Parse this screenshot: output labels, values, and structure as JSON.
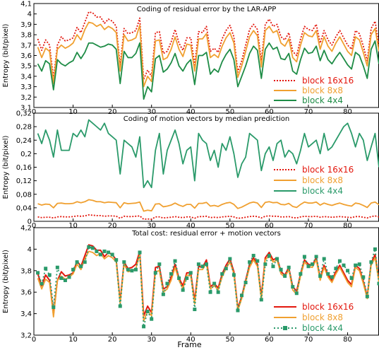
{
  "xlabel": "Frame",
  "chart_data": [
    {
      "type": "line",
      "title": "Coding of residual error by the LAR-APP",
      "ylabel": "Entropy (bit/pixel)",
      "xlim": [
        0,
        88
      ],
      "ylim": [
        3.1,
        4.1
      ],
      "yticks": [
        "3,1",
        "3,2",
        "3,3",
        "3,4",
        "3,5",
        "3,6",
        "3,7",
        "3,8",
        "3,9",
        "4",
        "4,1"
      ],
      "xticks": [
        "0",
        "10",
        "20",
        "30",
        "40",
        "50",
        "60",
        "70",
        "80"
      ],
      "legend_position": "bottom-right",
      "grid": false,
      "series": [
        {
          "name": "block 16x16",
          "color": "#e3170d",
          "dash": "2,2",
          "markers": false,
          "values": [
            3.76,
            3.65,
            3.75,
            3.7,
            3.38,
            3.7,
            3.78,
            3.74,
            3.75,
            3.77,
            3.87,
            3.82,
            3.92,
            4.02,
            4.01,
            3.97,
            3.97,
            3.91,
            3.95,
            3.93,
            3.88,
            3.5,
            3.86,
            3.81,
            3.82,
            3.84,
            3.96,
            3.37,
            3.46,
            3.4,
            3.82,
            3.83,
            3.62,
            3.64,
            3.73,
            3.85,
            3.72,
            3.65,
            3.77,
            3.77,
            3.51,
            3.83,
            3.82,
            3.88,
            3.64,
            3.67,
            3.63,
            3.76,
            3.84,
            3.89,
            3.78,
            3.44,
            3.55,
            3.7,
            3.85,
            3.9,
            3.85,
            3.55,
            3.9,
            3.95,
            3.88,
            3.9,
            3.78,
            3.75,
            3.82,
            3.64,
            3.6,
            3.76,
            3.88,
            3.85,
            3.84,
            3.9,
            3.72,
            3.84,
            3.75,
            3.7,
            3.78,
            3.84,
            3.77,
            3.7,
            3.66,
            3.84,
            3.81,
            3.69,
            3.55,
            3.86,
            3.93,
            3.7
          ]
        },
        {
          "name": "block 8x8",
          "color": "#f0a030",
          "dash": "",
          "markers": false,
          "values": [
            3.68,
            3.58,
            3.67,
            3.64,
            3.33,
            3.66,
            3.7,
            3.67,
            3.69,
            3.72,
            3.8,
            3.75,
            3.85,
            3.92,
            3.91,
            3.88,
            3.9,
            3.85,
            3.88,
            3.86,
            3.82,
            3.45,
            3.8,
            3.74,
            3.75,
            3.77,
            3.89,
            3.3,
            3.4,
            3.35,
            3.74,
            3.75,
            3.56,
            3.58,
            3.66,
            3.78,
            3.66,
            3.59,
            3.71,
            3.7,
            3.45,
            3.76,
            3.76,
            3.81,
            3.58,
            3.61,
            3.58,
            3.69,
            3.77,
            3.82,
            3.72,
            3.39,
            3.5,
            3.64,
            3.78,
            3.84,
            3.79,
            3.49,
            3.84,
            3.88,
            3.82,
            3.84,
            3.72,
            3.69,
            3.76,
            3.58,
            3.54,
            3.7,
            3.82,
            3.79,
            3.78,
            3.84,
            3.66,
            3.78,
            3.69,
            3.64,
            3.72,
            3.78,
            3.71,
            3.64,
            3.6,
            3.78,
            3.75,
            3.63,
            3.5,
            3.8,
            3.86,
            3.64
          ]
        },
        {
          "name": "block 4x4",
          "color": "#1e8c46",
          "dash": "",
          "markers": false,
          "values": [
            3.52,
            3.45,
            3.55,
            3.52,
            3.27,
            3.56,
            3.52,
            3.5,
            3.53,
            3.55,
            3.63,
            3.57,
            3.63,
            3.72,
            3.72,
            3.7,
            3.68,
            3.69,
            3.71,
            3.7,
            3.66,
            3.33,
            3.64,
            3.58,
            3.58,
            3.62,
            3.72,
            3.18,
            3.3,
            3.25,
            3.57,
            3.6,
            3.44,
            3.47,
            3.53,
            3.62,
            3.5,
            3.45,
            3.52,
            3.56,
            3.32,
            3.6,
            3.6,
            3.63,
            3.42,
            3.47,
            3.44,
            3.54,
            3.61,
            3.66,
            3.56,
            3.3,
            3.4,
            3.5,
            3.62,
            3.69,
            3.65,
            3.38,
            3.66,
            3.72,
            3.66,
            3.68,
            3.57,
            3.56,
            3.62,
            3.45,
            3.42,
            3.56,
            3.67,
            3.62,
            3.63,
            3.69,
            3.55,
            3.65,
            3.56,
            3.52,
            3.58,
            3.63,
            3.57,
            3.51,
            3.47,
            3.63,
            3.6,
            3.5,
            3.38,
            3.66,
            3.74,
            3.52
          ]
        }
      ]
    },
    {
      "type": "line",
      "title": "Coding of motion vectors by median prediction",
      "ylabel": "Entropy (bit/pixel)",
      "xlim": [
        0,
        88
      ],
      "ylim": [
        0,
        0.32
      ],
      "yticks": [
        "0",
        "0,04",
        "0,08",
        "0,12",
        "0,16",
        "0,2",
        "0,24",
        "0,28",
        "0,32"
      ],
      "xticks": [
        "0",
        "10",
        "20",
        "30",
        "40",
        "50",
        "60",
        "70",
        "80"
      ],
      "legend_position": "right",
      "grid": false,
      "series": [
        {
          "name": "block 16x16",
          "color": "#e3170d",
          "dash": "2,2",
          "markers": false,
          "values": [
            0.013,
            0.011,
            0.012,
            0.012,
            0.01,
            0.013,
            0.014,
            0.013,
            0.013,
            0.014,
            0.016,
            0.015,
            0.016,
            0.019,
            0.018,
            0.017,
            0.017,
            0.015,
            0.016,
            0.016,
            0.015,
            0.009,
            0.015,
            0.014,
            0.014,
            0.015,
            0.016,
            0.006,
            0.007,
            0.006,
            0.013,
            0.013,
            0.01,
            0.011,
            0.012,
            0.014,
            0.012,
            0.011,
            0.013,
            0.013,
            0.009,
            0.014,
            0.014,
            0.015,
            0.011,
            0.012,
            0.011,
            0.013,
            0.014,
            0.015,
            0.013,
            0.009,
            0.01,
            0.012,
            0.014,
            0.015,
            0.014,
            0.01,
            0.015,
            0.016,
            0.015,
            0.015,
            0.013,
            0.013,
            0.014,
            0.011,
            0.01,
            0.013,
            0.015,
            0.014,
            0.014,
            0.015,
            0.012,
            0.014,
            0.013,
            0.012,
            0.013,
            0.014,
            0.013,
            0.012,
            0.011,
            0.014,
            0.014,
            0.012,
            0.01,
            0.014,
            0.016,
            0.013
          ]
        },
        {
          "name": "block 8x8",
          "color": "#f0a030",
          "dash": "",
          "markers": false,
          "values": [
            0.052,
            0.048,
            0.051,
            0.05,
            0.04,
            0.053,
            0.054,
            0.052,
            0.052,
            0.053,
            0.058,
            0.055,
            0.058,
            0.064,
            0.062,
            0.058,
            0.058,
            0.055,
            0.057,
            0.056,
            0.055,
            0.04,
            0.055,
            0.052,
            0.053,
            0.054,
            0.057,
            0.03,
            0.033,
            0.031,
            0.051,
            0.052,
            0.043,
            0.045,
            0.048,
            0.054,
            0.048,
            0.044,
            0.05,
            0.05,
            0.039,
            0.053,
            0.053,
            0.056,
            0.045,
            0.047,
            0.044,
            0.05,
            0.054,
            0.056,
            0.05,
            0.038,
            0.042,
            0.048,
            0.054,
            0.057,
            0.054,
            0.041,
            0.056,
            0.058,
            0.055,
            0.056,
            0.05,
            0.049,
            0.053,
            0.044,
            0.041,
            0.05,
            0.057,
            0.054,
            0.054,
            0.057,
            0.048,
            0.054,
            0.05,
            0.047,
            0.051,
            0.054,
            0.05,
            0.047,
            0.045,
            0.054,
            0.052,
            0.047,
            0.041,
            0.054,
            0.057,
            0.049
          ]
        },
        {
          "name": "block 4x4",
          "color": "#2a9a6a",
          "dash": "",
          "markers": false,
          "values": [
            0.26,
            0.23,
            0.27,
            0.24,
            0.19,
            0.27,
            0.21,
            0.21,
            0.21,
            0.26,
            0.25,
            0.27,
            0.25,
            0.3,
            0.29,
            0.28,
            0.27,
            0.29,
            0.26,
            0.25,
            0.24,
            0.14,
            0.24,
            0.23,
            0.22,
            0.19,
            0.25,
            0.1,
            0.12,
            0.1,
            0.21,
            0.26,
            0.14,
            0.21,
            0.24,
            0.27,
            0.23,
            0.17,
            0.21,
            0.22,
            0.12,
            0.26,
            0.24,
            0.23,
            0.18,
            0.21,
            0.16,
            0.23,
            0.21,
            0.25,
            0.2,
            0.13,
            0.17,
            0.19,
            0.26,
            0.25,
            0.24,
            0.15,
            0.2,
            0.22,
            0.18,
            0.23,
            0.24,
            0.19,
            0.21,
            0.2,
            0.17,
            0.21,
            0.26,
            0.22,
            0.23,
            0.24,
            0.2,
            0.26,
            0.21,
            0.22,
            0.24,
            0.26,
            0.28,
            0.29,
            0.26,
            0.22,
            0.26,
            0.24,
            0.18,
            0.22,
            0.26,
            0.16
          ]
        }
      ]
    },
    {
      "type": "line",
      "title": "Total cost: residual error + motion vectors",
      "ylabel": "Entropy (bit/pixel)",
      "xlim": [
        0,
        88
      ],
      "ylim": [
        3.2,
        4.2
      ],
      "yticks": [
        "3,2",
        "3,4",
        "3,6",
        "3,8",
        "4",
        "4,2"
      ],
      "xticks": [
        "0",
        "10",
        "20",
        "30",
        "40",
        "50",
        "60",
        "70",
        "80"
      ],
      "legend_position": "bottom-right",
      "grid": false,
      "series": [
        {
          "name": "block 16x16",
          "color": "#e3170d",
          "dash": "",
          "markers": false,
          "values": [
            3.77,
            3.66,
            3.76,
            3.71,
            3.39,
            3.71,
            3.79,
            3.75,
            3.76,
            3.78,
            3.89,
            3.84,
            3.94,
            4.04,
            4.03,
            3.99,
            3.99,
            3.93,
            3.97,
            3.95,
            3.9,
            3.51,
            3.88,
            3.82,
            3.83,
            3.86,
            3.98,
            3.38,
            3.47,
            3.41,
            3.83,
            3.84,
            3.63,
            3.65,
            3.74,
            3.86,
            3.73,
            3.66,
            3.78,
            3.78,
            3.52,
            3.84,
            3.83,
            3.9,
            3.65,
            3.68,
            3.64,
            3.77,
            3.85,
            3.91,
            3.79,
            3.45,
            3.56,
            3.71,
            3.86,
            3.92,
            3.86,
            3.56,
            3.92,
            3.97,
            3.9,
            3.92,
            3.79,
            3.76,
            3.83,
            3.65,
            3.61,
            3.77,
            3.9,
            3.86,
            3.85,
            3.92,
            3.73,
            3.85,
            3.76,
            3.71,
            3.79,
            3.85,
            3.78,
            3.71,
            3.67,
            3.85,
            3.82,
            3.7,
            3.56,
            3.87,
            3.95,
            3.71
          ]
        },
        {
          "name": "block 8x8",
          "color": "#f0a030",
          "dash": "",
          "markers": false,
          "values": [
            3.73,
            3.63,
            3.72,
            3.69,
            3.37,
            3.71,
            3.75,
            3.72,
            3.74,
            3.77,
            3.86,
            3.81,
            3.91,
            3.98,
            3.97,
            3.94,
            3.96,
            3.91,
            3.94,
            3.92,
            3.88,
            3.49,
            3.86,
            3.79,
            3.8,
            3.82,
            3.95,
            3.33,
            3.43,
            3.38,
            3.79,
            3.8,
            3.6,
            3.63,
            3.71,
            3.83,
            3.71,
            3.63,
            3.76,
            3.75,
            3.49,
            3.81,
            3.81,
            3.87,
            3.63,
            3.66,
            3.62,
            3.74,
            3.82,
            3.88,
            3.77,
            3.43,
            3.54,
            3.69,
            3.83,
            3.9,
            3.84,
            3.53,
            3.9,
            3.94,
            3.88,
            3.9,
            3.77,
            3.74,
            3.81,
            3.62,
            3.58,
            3.75,
            3.88,
            3.84,
            3.83,
            3.9,
            3.71,
            3.83,
            3.74,
            3.69,
            3.77,
            3.83,
            3.76,
            3.69,
            3.65,
            3.83,
            3.8,
            3.68,
            3.54,
            3.85,
            3.92,
            3.69
          ]
        },
        {
          "name": "block 4x4",
          "color": "#2a9a6a",
          "dash": "2,3",
          "markers": true,
          "values": [
            3.78,
            3.68,
            3.82,
            3.76,
            3.46,
            3.83,
            3.73,
            3.71,
            3.74,
            3.81,
            3.88,
            3.84,
            3.88,
            4.02,
            4.01,
            3.98,
            3.95,
            3.98,
            3.97,
            3.95,
            3.9,
            3.47,
            3.88,
            3.81,
            3.8,
            3.81,
            3.97,
            3.28,
            3.42,
            3.35,
            3.78,
            3.86,
            3.58,
            3.68,
            3.77,
            3.89,
            3.73,
            3.62,
            3.73,
            3.78,
            3.44,
            3.86,
            3.84,
            3.86,
            3.6,
            3.68,
            3.6,
            3.77,
            3.82,
            3.91,
            3.76,
            3.43,
            3.57,
            3.69,
            3.88,
            3.94,
            3.89,
            3.53,
            3.86,
            3.94,
            3.84,
            3.91,
            3.81,
            3.75,
            3.83,
            3.65,
            3.59,
            3.77,
            3.93,
            3.84,
            3.86,
            3.93,
            3.75,
            3.91,
            3.77,
            3.74,
            3.82,
            3.89,
            3.85,
            3.8,
            3.73,
            3.85,
            3.86,
            3.74,
            3.56,
            3.88,
            4.0,
            3.68
          ]
        }
      ]
    }
  ]
}
